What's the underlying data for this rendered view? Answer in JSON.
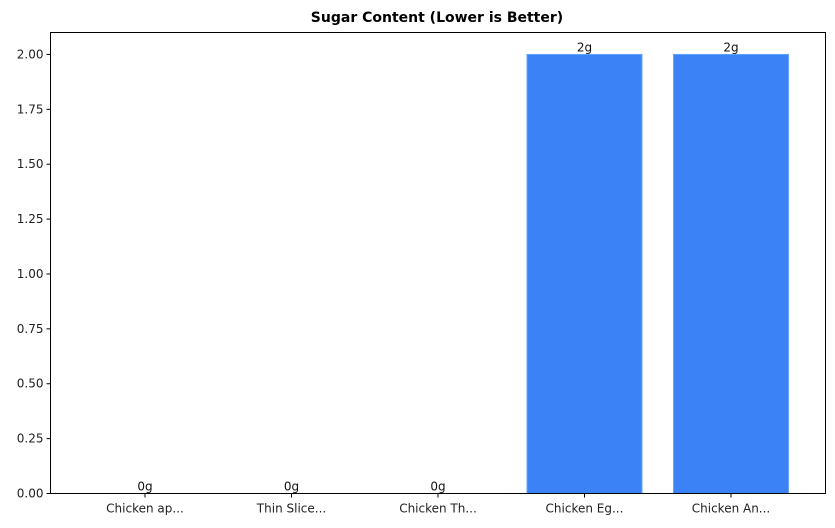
{
  "chart_data": {
    "type": "bar",
    "title": "Sugar Content (Lower is Better)",
    "xlabel": "",
    "ylabel": "",
    "categories": [
      "Chicken ap...",
      "Thin Slice...",
      "Chicken Th...",
      "Chicken Eg...",
      "Chicken An..."
    ],
    "values": [
      0,
      0,
      0,
      2,
      2
    ],
    "value_labels": [
      "0g",
      "0g",
      "0g",
      "2g",
      "2g"
    ],
    "ylim": [
      0,
      2.1
    ],
    "yticks": [
      "0.00",
      "0.25",
      "0.50",
      "0.75",
      "1.00",
      "1.25",
      "1.50",
      "1.75",
      "2.00"
    ],
    "grid": false,
    "legend": null,
    "bar_color": "#3b82f6"
  }
}
